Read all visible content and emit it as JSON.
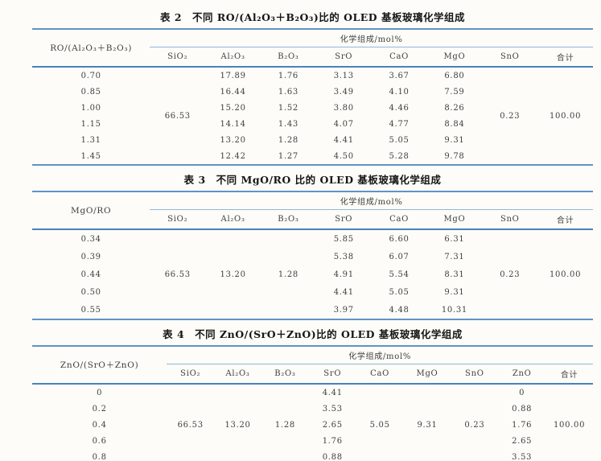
{
  "colors": {
    "rule_strong": "#6093c6",
    "rule_header": "#4a82bb",
    "rule_light": "#93b7db",
    "background": "#fdfcf8",
    "text": "#3e3e3e",
    "title_text": "#161616"
  },
  "tables": [
    {
      "title": "表 2　不同 RO/(Al₂O₃＋B₂O₃)比的 OLED 基板玻璃化学组成",
      "stub_header": "RO/(Al₂O₃＋B₂O₃)",
      "group_header": "化学组成/mol%",
      "stub_width": "21%",
      "row_labels": [
        "0.70",
        "0.85",
        "1.00",
        "1.15",
        "1.31",
        "1.45"
      ],
      "columns": [
        {
          "label": "SiO₂",
          "merged": "66.53"
        },
        {
          "label": "Al₂O₃",
          "values": [
            "17.89",
            "16.44",
            "15.20",
            "14.14",
            "13.20",
            "12.42"
          ]
        },
        {
          "label": "B₂O₃",
          "values": [
            "1.76",
            "1.63",
            "1.52",
            "1.43",
            "1.28",
            "1.27"
          ]
        },
        {
          "label": "SrO",
          "values": [
            "3.13",
            "3.49",
            "3.80",
            "4.07",
            "4.41",
            "4.50"
          ]
        },
        {
          "label": "CaO",
          "values": [
            "3.67",
            "4.10",
            "4.46",
            "4.77",
            "5.05",
            "5.28"
          ]
        },
        {
          "label": "MgO",
          "values": [
            "6.80",
            "7.59",
            "8.26",
            "8.84",
            "9.31",
            "9.78"
          ]
        },
        {
          "label": "SnO",
          "merged": "0.23"
        },
        {
          "label": "合计",
          "merged": "100.00"
        }
      ]
    },
    {
      "title": "表 3　不同 MgO/RO 比的 OLED 基板玻璃化学组成",
      "stub_header": "MgO/RO",
      "group_header": "化学组成/mol%",
      "stub_width": "21%",
      "row_labels": [
        "0.34",
        "0.39",
        "0.44",
        "0.50",
        "0.55"
      ],
      "columns": [
        {
          "label": "SiO₂",
          "merged": "66.53"
        },
        {
          "label": "Al₂O₃",
          "merged": "13.20"
        },
        {
          "label": "B₂O₃",
          "merged": "1.28"
        },
        {
          "label": "SrO",
          "values": [
            "5.85",
            "5.38",
            "4.91",
            "4.41",
            "3.97"
          ]
        },
        {
          "label": "CaO",
          "values": [
            "6.60",
            "6.07",
            "5.54",
            "5.05",
            "4.48"
          ]
        },
        {
          "label": "MgO",
          "values": [
            "6.31",
            "7.31",
            "8.31",
            "9.31",
            "10.31"
          ]
        },
        {
          "label": "SnO",
          "merged": "0.23"
        },
        {
          "label": "合计",
          "merged": "100.00"
        }
      ]
    },
    {
      "title": "表 4　不同 ZnO/(SrO＋ZnO)比的 OLED 基板玻璃化学组成",
      "stub_header": "ZnO/(SrO＋ZnO)",
      "group_header": "化学组成/mol%",
      "stub_width": "24%",
      "row_labels": [
        "0",
        "0.2",
        "0.4",
        "0.6",
        "0.8"
      ],
      "columns": [
        {
          "label": "SiO₂",
          "merged": "66.53"
        },
        {
          "label": "Al₂O₃",
          "merged": "13.20"
        },
        {
          "label": "B₂O₃",
          "merged": "1.28"
        },
        {
          "label": "SrO",
          "values": [
            "4.41",
            "3.53",
            "2.65",
            "1.76",
            "0.88"
          ]
        },
        {
          "label": "CaO",
          "merged": "5.05"
        },
        {
          "label": "MgO",
          "merged": "9.31"
        },
        {
          "label": "SnO",
          "merged": "0.23"
        },
        {
          "label": "ZnO",
          "values": [
            "0",
            "0.88",
            "1.76",
            "2.65",
            "3.53"
          ]
        },
        {
          "label": "合计",
          "merged": "100.00"
        }
      ]
    }
  ]
}
